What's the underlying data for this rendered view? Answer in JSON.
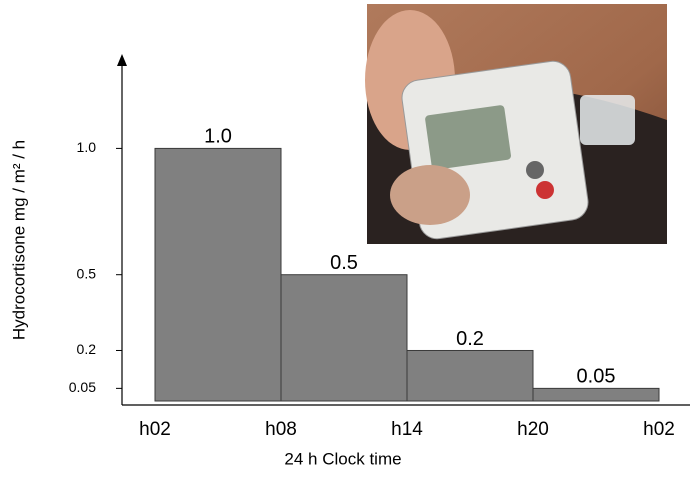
{
  "chart_data": {
    "type": "histogram",
    "y_label": "Hydrocortisone  mg / m² / h",
    "x_label": "24 h Clock time",
    "bins": [
      "h02",
      "h08",
      "h14",
      "h20",
      "h02"
    ],
    "values": [
      1.0,
      0.5,
      0.2,
      0.05
    ],
    "value_labels": [
      "1.0",
      "0.5",
      "0.2",
      "0.05"
    ],
    "color": "#808080",
    "ylim": [
      0,
      1.35
    ],
    "yticks": [
      {
        "value": 1,
        "label": "1.0"
      },
      0.5,
      0.2,
      0.05
    ]
  }
}
